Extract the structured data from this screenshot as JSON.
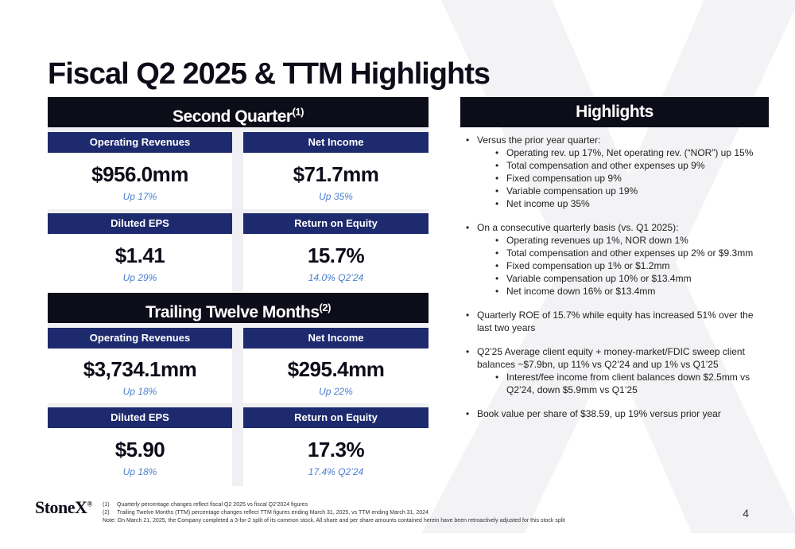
{
  "title": "Fiscal Q2 2025 & TTM Highlights",
  "second_quarter": {
    "header": "Second Quarter",
    "header_sup": "(1)",
    "cards": [
      {
        "label": "Operating Revenues",
        "value": "$956.0mm",
        "sub": "Up 17%"
      },
      {
        "label": "Net Income",
        "value": "$71.7mm",
        "sub": "Up 35%"
      },
      {
        "label": "Diluted EPS",
        "value": "$1.41",
        "sub": "Up 29%"
      },
      {
        "label": "Return on Equity",
        "value": "15.7%",
        "sub": "14.0% Q2’24"
      }
    ]
  },
  "ttm": {
    "header": "Trailing Twelve Months",
    "header_sup": "(2)",
    "cards": [
      {
        "label": "Operating Revenues",
        "value": "$3,734.1mm",
        "sub": "Up 18%"
      },
      {
        "label": "Net Income",
        "value": "$295.4mm",
        "sub": "Up 22%"
      },
      {
        "label": "Diluted EPS",
        "value": "$5.90",
        "sub": "Up 18%"
      },
      {
        "label": "Return on Equity",
        "value": "17.3%",
        "sub": "17.4% Q2’24"
      }
    ]
  },
  "highlights": {
    "header": "Highlights",
    "bullet": "•",
    "items": [
      {
        "text": "Versus the prior year quarter:",
        "subs": [
          "Operating rev. up 17%, Net operating rev. (“NOR”) up 15%",
          "Total compensation and other expenses up 9%",
          "Fixed compensation up 9%",
          "Variable compensation up 19%",
          "Net income up 35%"
        ]
      },
      {
        "text": "On a consecutive quarterly basis (vs. Q1 2025):",
        "subs": [
          "Operating revenues up 1%, NOR down 1%",
          "Total compensation and other expenses up 2% or $9.3mm",
          "Fixed compensation up 1% or $1.2mm",
          "Variable compensation up 10% or $13.4mm",
          "Net income down 16% or $13.4mm"
        ]
      },
      {
        "text": "Quarterly ROE of 15.7% while equity has increased 51% over the last two years",
        "subs": []
      },
      {
        "text": "Q2’25 Average client equity + money-market/FDIC sweep client balances ~$7.9bn, up 11% vs Q2’24 and up 1% vs Q1’25",
        "subs": [
          "Interest/fee income from client balances down $2.5mm vs Q2’24, down $5.9mm vs Q1’25"
        ]
      },
      {
        "text": "Book value per share of $38.59, up 19% versus prior year",
        "subs": []
      }
    ]
  },
  "footer": {
    "logo": "StoneX",
    "logo_mark": "®",
    "notes": [
      {
        "num": "(1)",
        "text": "Quarterly percentage changes reflect fiscal Q2 2025 vs fiscal Q2’2024 figures"
      },
      {
        "num": "(2)",
        "text": "Trailing Twelve Months (TTM) percentage changes reflect TTM figures ending March 31, 2025, vs TTM ending March 31, 2024"
      }
    ],
    "note_extra": "Note: On March 21, 2025, the Company completed a 3-for-2 split of its common stock. All share and per share amounts contained herein have been retroactively adjusted for this stock split",
    "page_number": "4"
  },
  "colors": {
    "navy": "#0d0d1a",
    "card_head": "#1e2a6e",
    "accent_blue": "#4a7fd0",
    "panel_bg": "#f0f0f4"
  }
}
